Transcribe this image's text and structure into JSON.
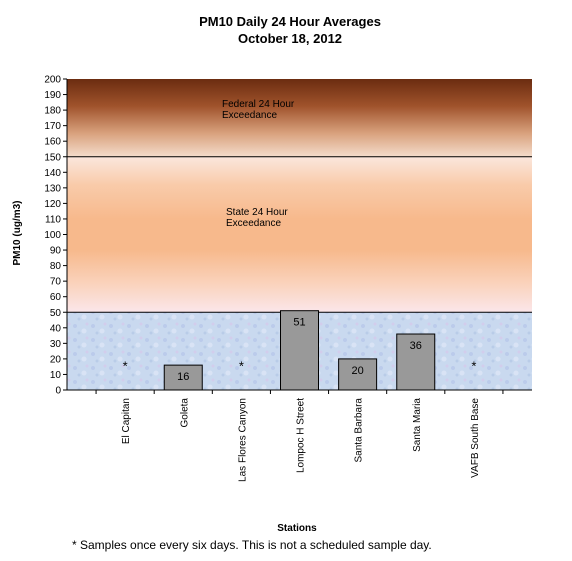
{
  "chart_data": {
    "type": "bar",
    "title": "PM10 Daily 24 Hour Averages",
    "subtitle": "October 18, 2012",
    "xlabel": "Stations",
    "ylabel": "PM10 (ug/m3)",
    "ylim": [
      0,
      200
    ],
    "yticks": [
      0,
      10,
      20,
      30,
      40,
      50,
      60,
      70,
      80,
      90,
      100,
      110,
      120,
      130,
      140,
      150,
      160,
      170,
      180,
      190,
      200
    ],
    "grid": false,
    "categories": [
      "El Capitan",
      "Goleta",
      "Las Flores Canyon",
      "Lompoc H Street",
      "Santa Barbara",
      "Santa Maria",
      "VAFB South Base"
    ],
    "values": [
      null,
      16,
      null,
      51,
      20,
      36,
      null
    ],
    "data_labels": [
      "*",
      "16",
      "*",
      "51",
      "20",
      "36",
      "*"
    ],
    "bar_color": "#999999",
    "thresholds": [
      {
        "value": 50,
        "label_lines": [
          "State 24 Hour",
          "Exceedance"
        ]
      },
      {
        "value": 150,
        "label_lines": [
          "Federal 24 Hour",
          "Exceedance"
        ]
      }
    ],
    "band_colors": {
      "low": "#c8d8ee",
      "state": "#f7b98c",
      "federal": "#a0532c"
    },
    "footnote": "* Samples once every six days.  This is not a scheduled sample day."
  }
}
